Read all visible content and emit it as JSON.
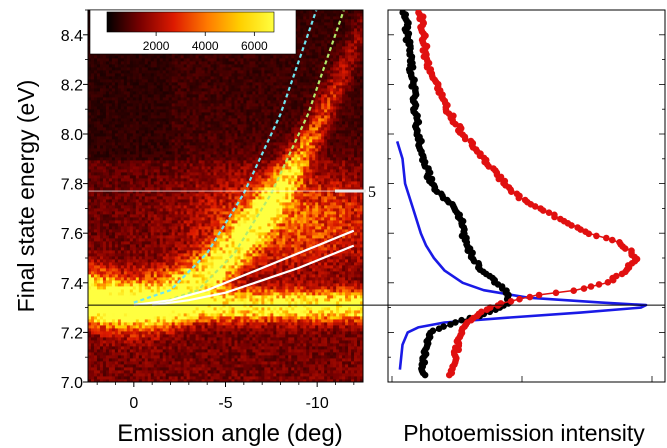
{
  "chart_data": [
    {
      "type": "heatmap",
      "xlabel": "Emission angle (deg)",
      "ylabel": "Final state energy (eV)",
      "xlim": [
        2.5,
        -12.5
      ],
      "ylim": [
        7.0,
        8.5
      ],
      "x_ticks": [
        0,
        -5,
        -10
      ],
      "x_tick_labels": [
        "0",
        "-5",
        "-10"
      ],
      "y_ticks": [
        7.0,
        7.2,
        7.4,
        7.6,
        7.8,
        8.0,
        8.2,
        8.4
      ],
      "y_tick_labels": [
        "7.0",
        "7.2",
        "7.4",
        "7.6",
        "7.8",
        "8.0",
        "8.2",
        "8.4"
      ],
      "colormap": [
        "#000000",
        "#7a0000",
        "#dd1a00",
        "#ff7a00",
        "#ffd000",
        "#ffff40"
      ],
      "colorbar": {
        "range": [
          0,
          6800
        ],
        "ticks": [
          2000,
          4000,
          6000
        ],
        "tick_labels": [
          "2000",
          "4000",
          "6000"
        ]
      },
      "intensity_model": {
        "flat_band": {
          "energy": 7.31,
          "amplitude": 6600,
          "width": 0.055
        },
        "dispersive_band": {
          "min_energy": 7.32,
          "curvature": 0.0072,
          "amplitude": 6100,
          "width": 0.1,
          "decay": 0.09
        },
        "broad_emission": {
          "center_angle": -8.5,
          "center_energy": 7.66,
          "amplitude": 2600
        },
        "background": 1100
      },
      "overlays": [
        {
          "name": "cyan dashed parabola",
          "style": "dashed",
          "color": "#6ee6f0",
          "x": [
            0,
            -2,
            -4,
            -6,
            -8,
            -10,
            -11.5
          ],
          "y": [
            7.32,
            7.37,
            7.52,
            7.76,
            8.08,
            8.51,
            8.89
          ]
        },
        {
          "name": "green dashed parabola",
          "style": "dashed",
          "color": "#b4ea6a",
          "x": [
            -1.5,
            -3.5,
            -5.5,
            -7.5,
            -9.5,
            -11.5,
            -12.2
          ],
          "y": [
            7.32,
            7.37,
            7.52,
            7.76,
            8.08,
            8.51,
            8.68
          ]
        },
        {
          "name": "upper white line",
          "style": "solid",
          "color": "#ffffff",
          "x": [
            0,
            -2,
            -4,
            -6,
            -8,
            -10,
            -12
          ],
          "y": [
            7.31,
            7.33,
            7.37,
            7.43,
            7.49,
            7.55,
            7.61
          ]
        },
        {
          "name": "lower white line",
          "style": "solid",
          "color": "#ffffff",
          "x": [
            -1,
            -3,
            -5,
            -7,
            -9,
            -11,
            -12
          ],
          "y": [
            7.31,
            7.33,
            7.36,
            7.41,
            7.46,
            7.52,
            7.55
          ]
        }
      ],
      "reference_lines": [
        {
          "orientation": "horizontal",
          "y": 7.31,
          "color": "#000000"
        },
        {
          "orientation": "horizontal",
          "y": 7.77,
          "color": "#ffffff"
        }
      ],
      "annotation": {
        "text": "5",
        "y": 7.77
      }
    },
    {
      "type": "line",
      "xlabel": "Photoemission intensity",
      "ylim": [
        7.0,
        8.5
      ],
      "series": [
        {
          "color": "#1a1ae6",
          "style": "line",
          "y": [
            7.97,
            7.9,
            7.8,
            7.7,
            7.6,
            7.55,
            7.5,
            7.45,
            7.4,
            7.37,
            7.34,
            7.32,
            7.31,
            7.3,
            7.28,
            7.26,
            7.24,
            7.22,
            7.2,
            7.15,
            7.1,
            7.05
          ],
          "intensity": [
            0.02,
            0.04,
            0.05,
            0.08,
            0.11,
            0.13,
            0.16,
            0.2,
            0.27,
            0.35,
            0.52,
            0.8,
            0.97,
            0.95,
            0.72,
            0.45,
            0.2,
            0.1,
            0.06,
            0.04,
            0.035,
            0.03
          ]
        },
        {
          "color": "#000000",
          "style": "markers",
          "y": [
            8.49,
            8.4,
            8.3,
            8.2,
            8.1,
            8.0,
            7.9,
            7.8,
            7.75,
            7.7,
            7.65,
            7.6,
            7.55,
            7.5,
            7.45,
            7.42,
            7.4,
            7.36,
            7.33,
            7.3,
            7.27,
            7.24,
            7.2,
            7.15,
            7.1,
            7.05,
            7.02
          ],
          "intensity": [
            0.05,
            0.06,
            0.07,
            0.08,
            0.09,
            0.1,
            0.12,
            0.15,
            0.19,
            0.24,
            0.27,
            0.27,
            0.29,
            0.31,
            0.34,
            0.38,
            0.4,
            0.44,
            0.45,
            0.42,
            0.34,
            0.24,
            0.15,
            0.13,
            0.12,
            0.12,
            0.12
          ]
        },
        {
          "color": "#e01010",
          "style": "markers",
          "y": [
            8.49,
            8.4,
            8.3,
            8.2,
            8.1,
            8.0,
            7.9,
            7.8,
            7.75,
            7.7,
            7.65,
            7.6,
            7.57,
            7.53,
            7.5,
            7.47,
            7.44,
            7.4,
            7.37,
            7.35,
            7.32,
            7.3,
            7.27,
            7.24,
            7.2,
            7.15,
            7.1,
            7.05,
            7.02
          ],
          "intensity": [
            0.11,
            0.12,
            0.13,
            0.17,
            0.21,
            0.27,
            0.35,
            0.43,
            0.48,
            0.56,
            0.66,
            0.75,
            0.85,
            0.91,
            0.93,
            0.91,
            0.88,
            0.82,
            0.7,
            0.55,
            0.43,
            0.37,
            0.33,
            0.28,
            0.26,
            0.25,
            0.24,
            0.23,
            0.22
          ]
        }
      ]
    }
  ]
}
